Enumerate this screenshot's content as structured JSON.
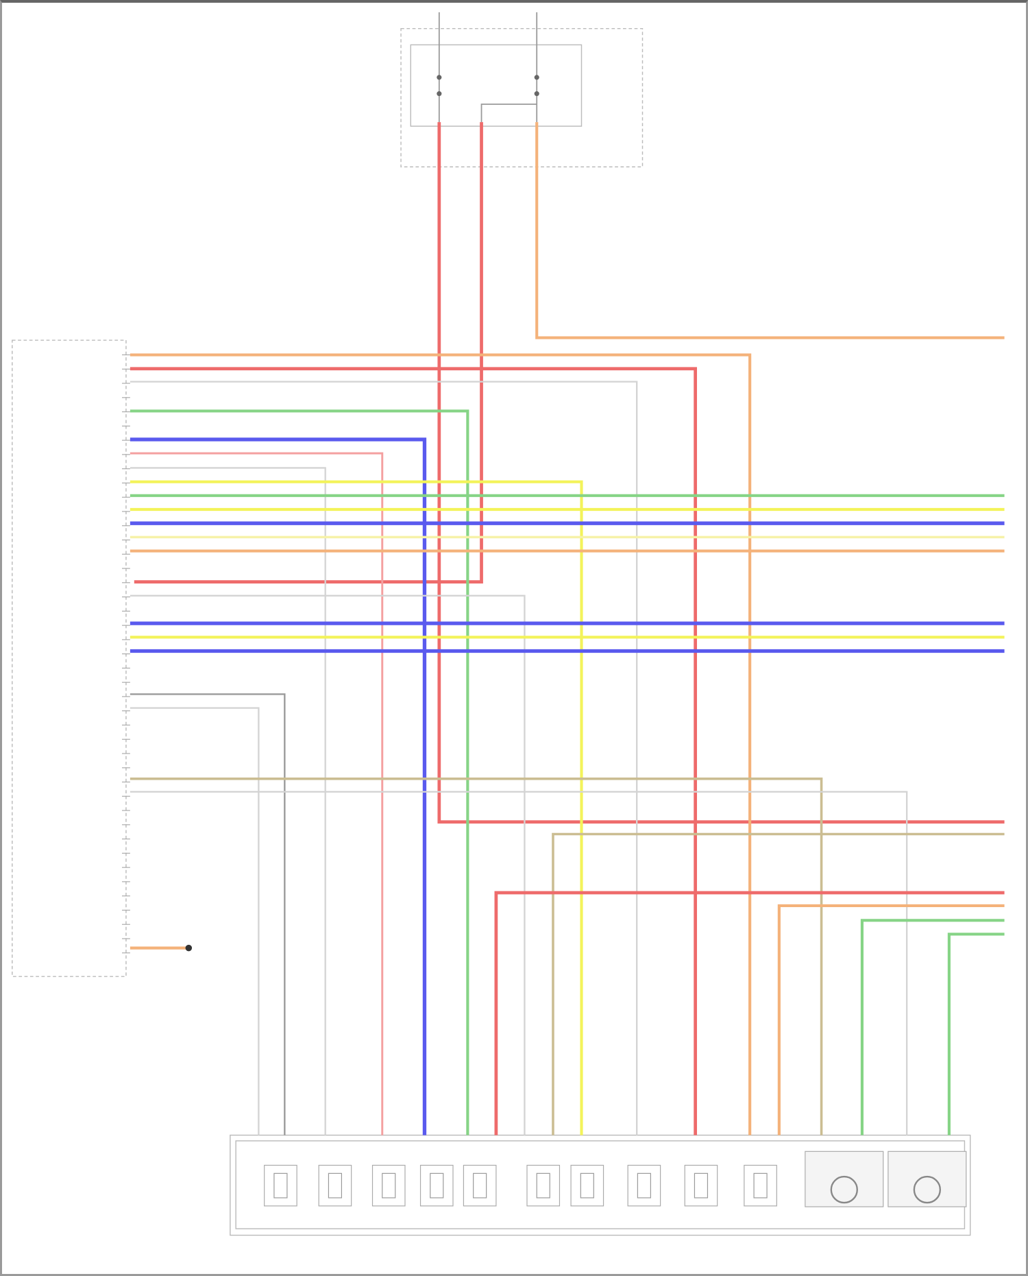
{
  "palette": {
    "orange": "#f4b27a",
    "red": "#ee6b6b",
    "pink": "#f4a0a0",
    "green": "#86d486",
    "blue": "#5a5aee",
    "yellow": "#f3f35a",
    "lightyellow": "#f6f2a8",
    "gray": "#d4d4d4",
    "darkgray": "#9a9a9a",
    "tan": "#cbbd92",
    "frame": "#9a9a9a"
  },
  "wires": [
    {
      "id": "fuse-feed-1",
      "color": "red"
    },
    {
      "id": "fuse-feed-2",
      "color": "red"
    },
    {
      "id": "fuse-feed-3",
      "color": "orange"
    },
    {
      "id": "pcm-1",
      "color": "orange"
    },
    {
      "id": "pcm-2",
      "color": "red"
    },
    {
      "id": "pcm-3",
      "color": "gray"
    },
    {
      "id": "pcm-4",
      "color": "green"
    },
    {
      "id": "pcm-5",
      "color": "blue"
    },
    {
      "id": "pcm-6",
      "color": "pink"
    },
    {
      "id": "pcm-7",
      "color": "gray"
    },
    {
      "id": "pcm-8",
      "color": "yellow"
    },
    {
      "id": "pcm-9",
      "color": "green"
    },
    {
      "id": "pcm-10",
      "color": "yellow"
    },
    {
      "id": "pcm-11",
      "color": "blue"
    },
    {
      "id": "pcm-12",
      "color": "lightyellow"
    },
    {
      "id": "pcm-13",
      "color": "orange"
    },
    {
      "id": "pcm-14",
      "color": "gray"
    },
    {
      "id": "pcm-15",
      "color": "blue"
    },
    {
      "id": "pcm-16",
      "color": "yellow"
    },
    {
      "id": "pcm-17",
      "color": "blue"
    },
    {
      "id": "pcm-18",
      "color": "darkgray"
    },
    {
      "id": "pcm-19",
      "color": "gray"
    },
    {
      "id": "pcm-20",
      "color": "tan"
    },
    {
      "id": "pcm-21",
      "color": "gray"
    },
    {
      "id": "pcm-22",
      "color": "orange"
    },
    {
      "id": "ext-1",
      "color": "tan"
    },
    {
      "id": "ext-2",
      "color": "red"
    },
    {
      "id": "ext-3",
      "color": "orange"
    },
    {
      "id": "ext-4",
      "color": "green"
    },
    {
      "id": "ext-5",
      "color": "green"
    }
  ],
  "components": [
    {
      "id": "temp-sensor",
      "kind": "sensor"
    },
    {
      "id": "solenoid-1",
      "kind": "solenoid"
    },
    {
      "id": "solenoid-2",
      "kind": "solenoid"
    },
    {
      "id": "solenoid-3",
      "kind": "solenoid"
    },
    {
      "id": "solenoid-4",
      "kind": "solenoid"
    },
    {
      "id": "switch",
      "kind": "sensor"
    },
    {
      "id": "solenoid-5",
      "kind": "solenoid"
    },
    {
      "id": "solenoid-6",
      "kind": "solenoid"
    },
    {
      "id": "solenoid-7",
      "kind": "solenoid"
    },
    {
      "id": "solenoid-8",
      "kind": "solenoid"
    },
    {
      "id": "input-speed-sensor",
      "kind": "speed-sensor"
    },
    {
      "id": "output-speed-sensor",
      "kind": "speed-sensor"
    }
  ]
}
